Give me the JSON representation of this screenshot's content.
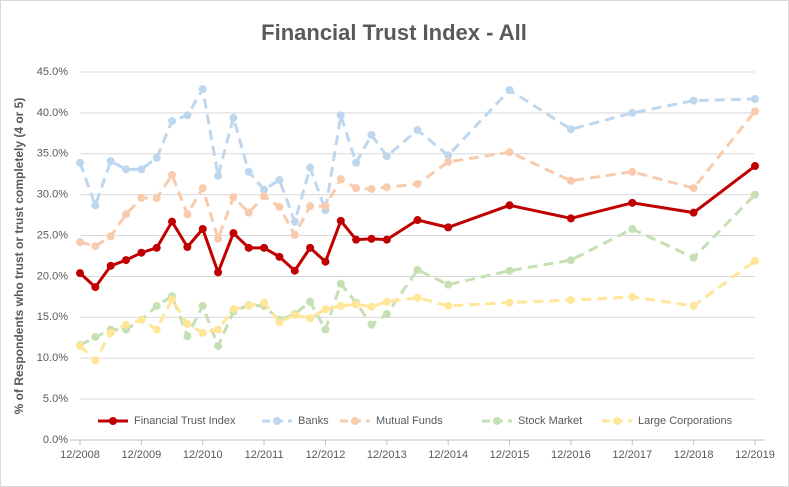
{
  "chart_data": {
    "type": "line",
    "title": "Financial Trust Index - All",
    "y_label": "% of Respondents who trust or trust completely (4 or 5)",
    "x": [
      0,
      3,
      6,
      9,
      12,
      15,
      18,
      21,
      24,
      27,
      30,
      33,
      36,
      39,
      42,
      45,
      48,
      51,
      54,
      57,
      60,
      66,
      72,
      84,
      96,
      108,
      120,
      132
    ],
    "xlim": [
      0,
      132
    ],
    "xticks": [
      {
        "value": 0,
        "label": "12/2008"
      },
      {
        "value": 12,
        "label": "12/2009"
      },
      {
        "value": 24,
        "label": "12/2010"
      },
      {
        "value": 36,
        "label": "12/2011"
      },
      {
        "value": 48,
        "label": "12/2012"
      },
      {
        "value": 60,
        "label": "12/2013"
      },
      {
        "value": 72,
        "label": "12/2014"
      },
      {
        "value": 84,
        "label": "12/2015"
      },
      {
        "value": 96,
        "label": "12/2016"
      },
      {
        "value": 108,
        "label": "12/2017"
      },
      {
        "value": 120,
        "label": "12/2018"
      },
      {
        "value": 132,
        "label": "12/2019"
      }
    ],
    "ylim": [
      0,
      45
    ],
    "yticks": [
      {
        "value": 0,
        "label": "0.0%"
      },
      {
        "value": 5,
        "label": "5.0%"
      },
      {
        "value": 10,
        "label": "10.0%"
      },
      {
        "value": 15,
        "label": "15.0%"
      },
      {
        "value": 20,
        "label": "20.0%"
      },
      {
        "value": 25,
        "label": "25.0%"
      },
      {
        "value": 30,
        "label": "30.0%"
      },
      {
        "value": 35,
        "label": "35.0%"
      },
      {
        "value": 40,
        "label": "40.0%"
      },
      {
        "value": 45,
        "label": "45.0%"
      }
    ],
    "grid": true,
    "legend": "bottom",
    "series": [
      {
        "name": "Financial Trust Index",
        "color": "#c00000",
        "line_style": "solid",
        "values": [
          20.4,
          18.7,
          21.3,
          22.0,
          22.9,
          23.5,
          26.7,
          23.6,
          25.8,
          20.5,
          25.3,
          23.5,
          23.5,
          22.4,
          20.7,
          23.5,
          21.8,
          26.8,
          24.5,
          24.6,
          24.5,
          26.9,
          26.0,
          28.7,
          27.1,
          29.0,
          27.8,
          33.5
        ]
      },
      {
        "name": "Banks",
        "color": "#bdd7ee",
        "line_style": "dashed",
        "values": [
          33.9,
          28.7,
          34.1,
          33.1,
          33.1,
          34.5,
          39.0,
          39.7,
          42.9,
          32.3,
          39.4,
          32.8,
          30.6,
          31.8,
          26.7,
          33.3,
          28.1,
          39.7,
          33.9,
          37.3,
          34.7,
          37.9,
          34.8,
          42.8,
          38.0,
          40.0,
          41.5,
          41.7
        ]
      },
      {
        "name": "Mutual Funds",
        "color": "#f8cbad",
        "line_style": "dashed",
        "values": [
          24.2,
          23.7,
          24.9,
          27.6,
          29.6,
          29.6,
          32.4,
          27.6,
          30.8,
          24.6,
          29.7,
          27.8,
          29.8,
          28.5,
          25.1,
          28.6,
          28.6,
          31.9,
          30.8,
          30.7,
          30.9,
          31.3,
          34.0,
          35.2,
          31.7,
          32.8,
          30.8,
          40.2
        ]
      },
      {
        "name": "Stock Market",
        "color": "#c5e0b4",
        "line_style": "dashed",
        "values": [
          11.6,
          12.6,
          13.5,
          13.5,
          14.7,
          16.4,
          17.6,
          12.7,
          16.4,
          11.5,
          15.7,
          16.5,
          16.4,
          14.7,
          15.4,
          16.9,
          13.5,
          19.1,
          16.8,
          14.1,
          15.4,
          20.8,
          19.0,
          20.7,
          22.0,
          25.8,
          22.3,
          30.0
        ]
      },
      {
        "name": "Large Corporations",
        "color": "#ffe699",
        "line_style": "dashed",
        "values": [
          11.5,
          9.7,
          13.1,
          14.1,
          14.7,
          13.5,
          17.2,
          14.2,
          13.1,
          13.5,
          16.0,
          16.4,
          16.8,
          14.4,
          15.3,
          14.9,
          16.0,
          16.4,
          16.6,
          16.3,
          16.9,
          17.4,
          16.4,
          16.8,
          17.1,
          17.5,
          16.4,
          21.9
        ]
      }
    ]
  }
}
